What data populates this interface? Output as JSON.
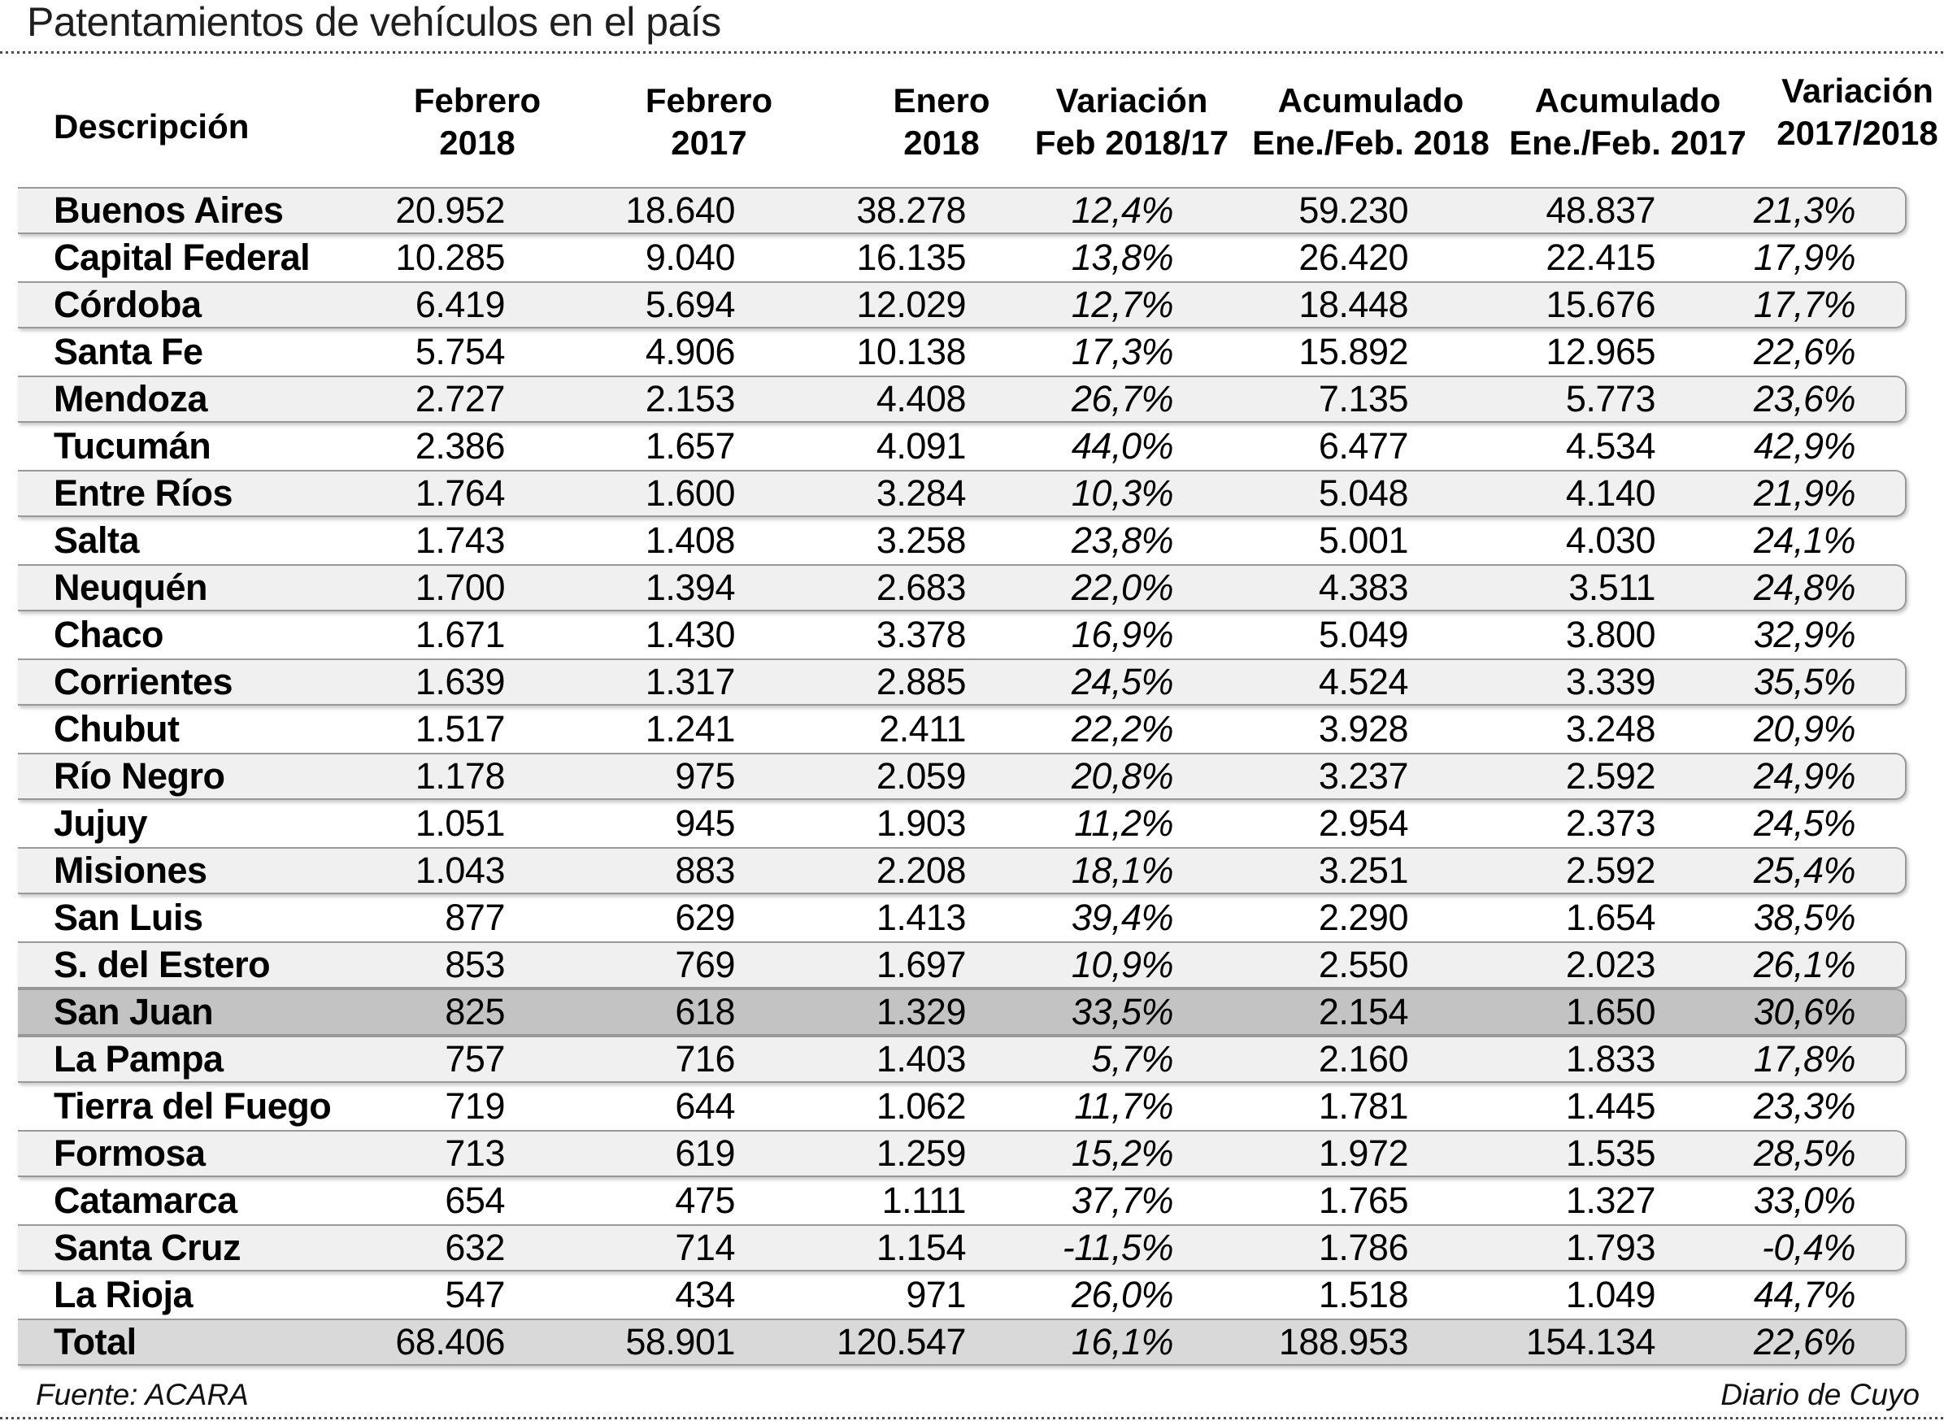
{
  "title": "Patentamientos de vehículos en el país",
  "colors": {
    "stripe_bg": "#f0f0f0",
    "highlight_bg": "#c3c3c3",
    "total_bg": "#d9d9d9",
    "row_border": "#999999",
    "dotted_rule": "#4d4d4d",
    "text": "#000000"
  },
  "chart_data": {
    "type": "table",
    "title": "Patentamientos de vehículos en el país",
    "columns": [
      "Descripción",
      "Febrero 2018",
      "Febrero 2017",
      "Enero 2018",
      "Variación Feb 2018/17",
      "Acumulado Ene./Feb. 2018",
      "Acumulado Ene./Feb. 2017",
      "Variación 2017/2018"
    ],
    "column_header_lines": [
      [
        "Descripción"
      ],
      [
        "Febrero",
        "2018"
      ],
      [
        "Febrero",
        "2017"
      ],
      [
        "Enero",
        "2018"
      ],
      [
        "Variación",
        "Feb 2018/17"
      ],
      [
        "Acumulado",
        "Ene./Feb. 2018"
      ],
      [
        "Acumulado",
        "Ene./Feb. 2017"
      ],
      [
        "Variación",
        "2017/2018"
      ]
    ],
    "rows": [
      {
        "label": "Buenos Aires",
        "values": [
          "20.952",
          "18.640",
          "38.278",
          "12,4%",
          "59.230",
          "48.837",
          "21,3%"
        ],
        "variant": "stripe"
      },
      {
        "label": "Capital Federal",
        "values": [
          "10.285",
          "9.040",
          "16.135",
          "13,8%",
          "26.420",
          "22.415",
          "17,9%"
        ],
        "variant": "plain"
      },
      {
        "label": "Córdoba",
        "values": [
          "6.419",
          "5.694",
          "12.029",
          "12,7%",
          "18.448",
          "15.676",
          "17,7%"
        ],
        "variant": "stripe"
      },
      {
        "label": "Santa Fe",
        "values": [
          "5.754",
          "4.906",
          "10.138",
          "17,3%",
          "15.892",
          "12.965",
          "22,6%"
        ],
        "variant": "plain"
      },
      {
        "label": "Mendoza",
        "values": [
          "2.727",
          "2.153",
          "4.408",
          "26,7%",
          "7.135",
          "5.773",
          "23,6%"
        ],
        "variant": "stripe"
      },
      {
        "label": "Tucumán",
        "values": [
          "2.386",
          "1.657",
          "4.091",
          "44,0%",
          "6.477",
          "4.534",
          "42,9%"
        ],
        "variant": "plain"
      },
      {
        "label": "Entre Ríos",
        "values": [
          "1.764",
          "1.600",
          "3.284",
          "10,3%",
          "5.048",
          "4.140",
          "21,9%"
        ],
        "variant": "stripe"
      },
      {
        "label": "Salta",
        "values": [
          "1.743",
          "1.408",
          "3.258",
          "23,8%",
          "5.001",
          "4.030",
          "24,1%"
        ],
        "variant": "plain"
      },
      {
        "label": "Neuquén",
        "values": [
          "1.700",
          "1.394",
          "2.683",
          "22,0%",
          "4.383",
          "3.511",
          "24,8%"
        ],
        "variant": "stripe"
      },
      {
        "label": "Chaco",
        "values": [
          "1.671",
          "1.430",
          "3.378",
          "16,9%",
          "5.049",
          "3.800",
          "32,9%"
        ],
        "variant": "plain"
      },
      {
        "label": "Corrientes",
        "values": [
          "1.639",
          "1.317",
          "2.885",
          "24,5%",
          "4.524",
          "3.339",
          "35,5%"
        ],
        "variant": "stripe"
      },
      {
        "label": "Chubut",
        "values": [
          "1.517",
          "1.241",
          "2.411",
          "22,2%",
          "3.928",
          "3.248",
          "20,9%"
        ],
        "variant": "plain"
      },
      {
        "label": "Río Negro",
        "values": [
          "1.178",
          "975",
          "2.059",
          "20,8%",
          "3.237",
          "2.592",
          "24,9%"
        ],
        "variant": "stripe"
      },
      {
        "label": "Jujuy",
        "values": [
          "1.051",
          "945",
          "1.903",
          "11,2%",
          "2.954",
          "2.373",
          "24,5%"
        ],
        "variant": "plain"
      },
      {
        "label": "Misiones",
        "values": [
          "1.043",
          "883",
          "2.208",
          "18,1%",
          "3.251",
          "2.592",
          "25,4%"
        ],
        "variant": "stripe"
      },
      {
        "label": "San Luis",
        "values": [
          "877",
          "629",
          "1.413",
          "39,4%",
          "2.290",
          "1.654",
          "38,5%"
        ],
        "variant": "plain"
      },
      {
        "label": "S. del Estero",
        "values": [
          "853",
          "769",
          "1.697",
          "10,9%",
          "2.550",
          "2.023",
          "26,1%"
        ],
        "variant": "stripe"
      },
      {
        "label": "San Juan",
        "values": [
          "825",
          "618",
          "1.329",
          "33,5%",
          "2.154",
          "1.650",
          "30,6%"
        ],
        "variant": "highlight"
      },
      {
        "label": "La Pampa",
        "values": [
          "757",
          "716",
          "1.403",
          "5,7%",
          "2.160",
          "1.833",
          "17,8%"
        ],
        "variant": "stripe"
      },
      {
        "label": "Tierra del Fuego",
        "values": [
          "719",
          "644",
          "1.062",
          "11,7%",
          "1.781",
          "1.445",
          "23,3%"
        ],
        "variant": "plain"
      },
      {
        "label": "Formosa",
        "values": [
          "713",
          "619",
          "1.259",
          "15,2%",
          "1.972",
          "1.535",
          "28,5%"
        ],
        "variant": "stripe"
      },
      {
        "label": "Catamarca",
        "values": [
          "654",
          "475",
          "1.111",
          "37,7%",
          "1.765",
          "1.327",
          "33,0%"
        ],
        "variant": "plain"
      },
      {
        "label": "Santa Cruz",
        "values": [
          "632",
          "714",
          "1.154",
          "-11,5%",
          "1.786",
          "1.793",
          "-0,4%"
        ],
        "variant": "stripe"
      },
      {
        "label": "La Rioja",
        "values": [
          "547",
          "434",
          "971",
          "26,0%",
          "1.518",
          "1.049",
          "44,7%"
        ],
        "variant": "plain"
      },
      {
        "label": "Total",
        "values": [
          "68.406",
          "58.901",
          "120.547",
          "16,1%",
          "188.953",
          "154.134",
          "22,6%"
        ],
        "variant": "total"
      }
    ],
    "source": "Fuente: ACARA",
    "credit": "Diario de Cuyo"
  }
}
